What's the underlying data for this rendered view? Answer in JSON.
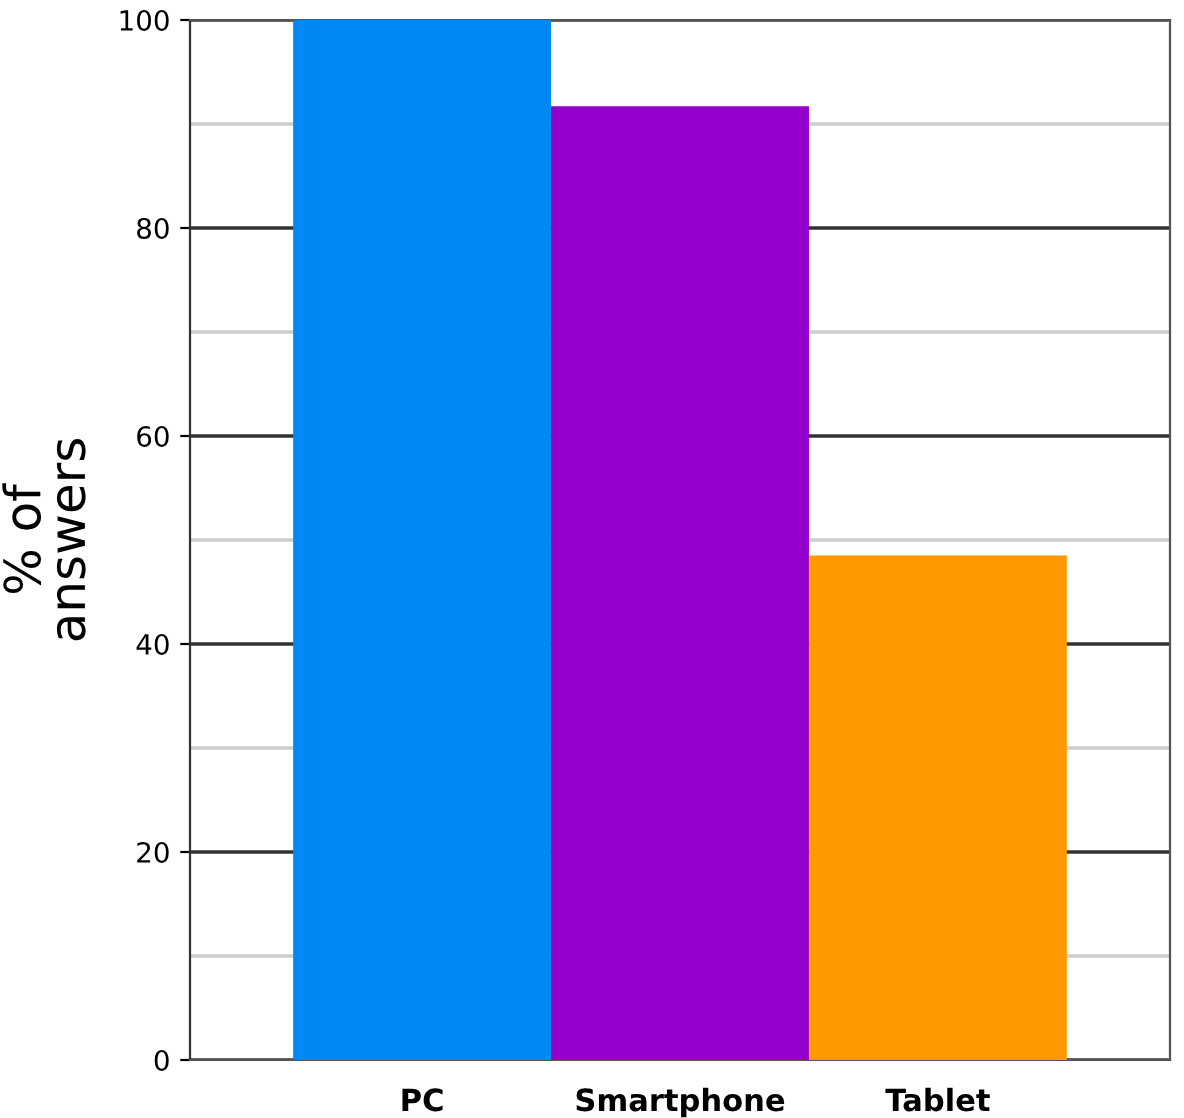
{
  "chart_data": {
    "type": "bar",
    "ylabel": "% of\nanswers",
    "categories": [
      "PC",
      "Smartphone",
      "Tablet"
    ],
    "values": [
      100,
      91.7,
      48.5
    ],
    "colors": [
      "#0088f5",
      "#9400cc",
      "#ff9900"
    ],
    "ylim": [
      0,
      100
    ],
    "yticks": [
      0,
      20,
      40,
      60,
      80,
      100
    ],
    "grid": "y",
    "legend": false
  }
}
